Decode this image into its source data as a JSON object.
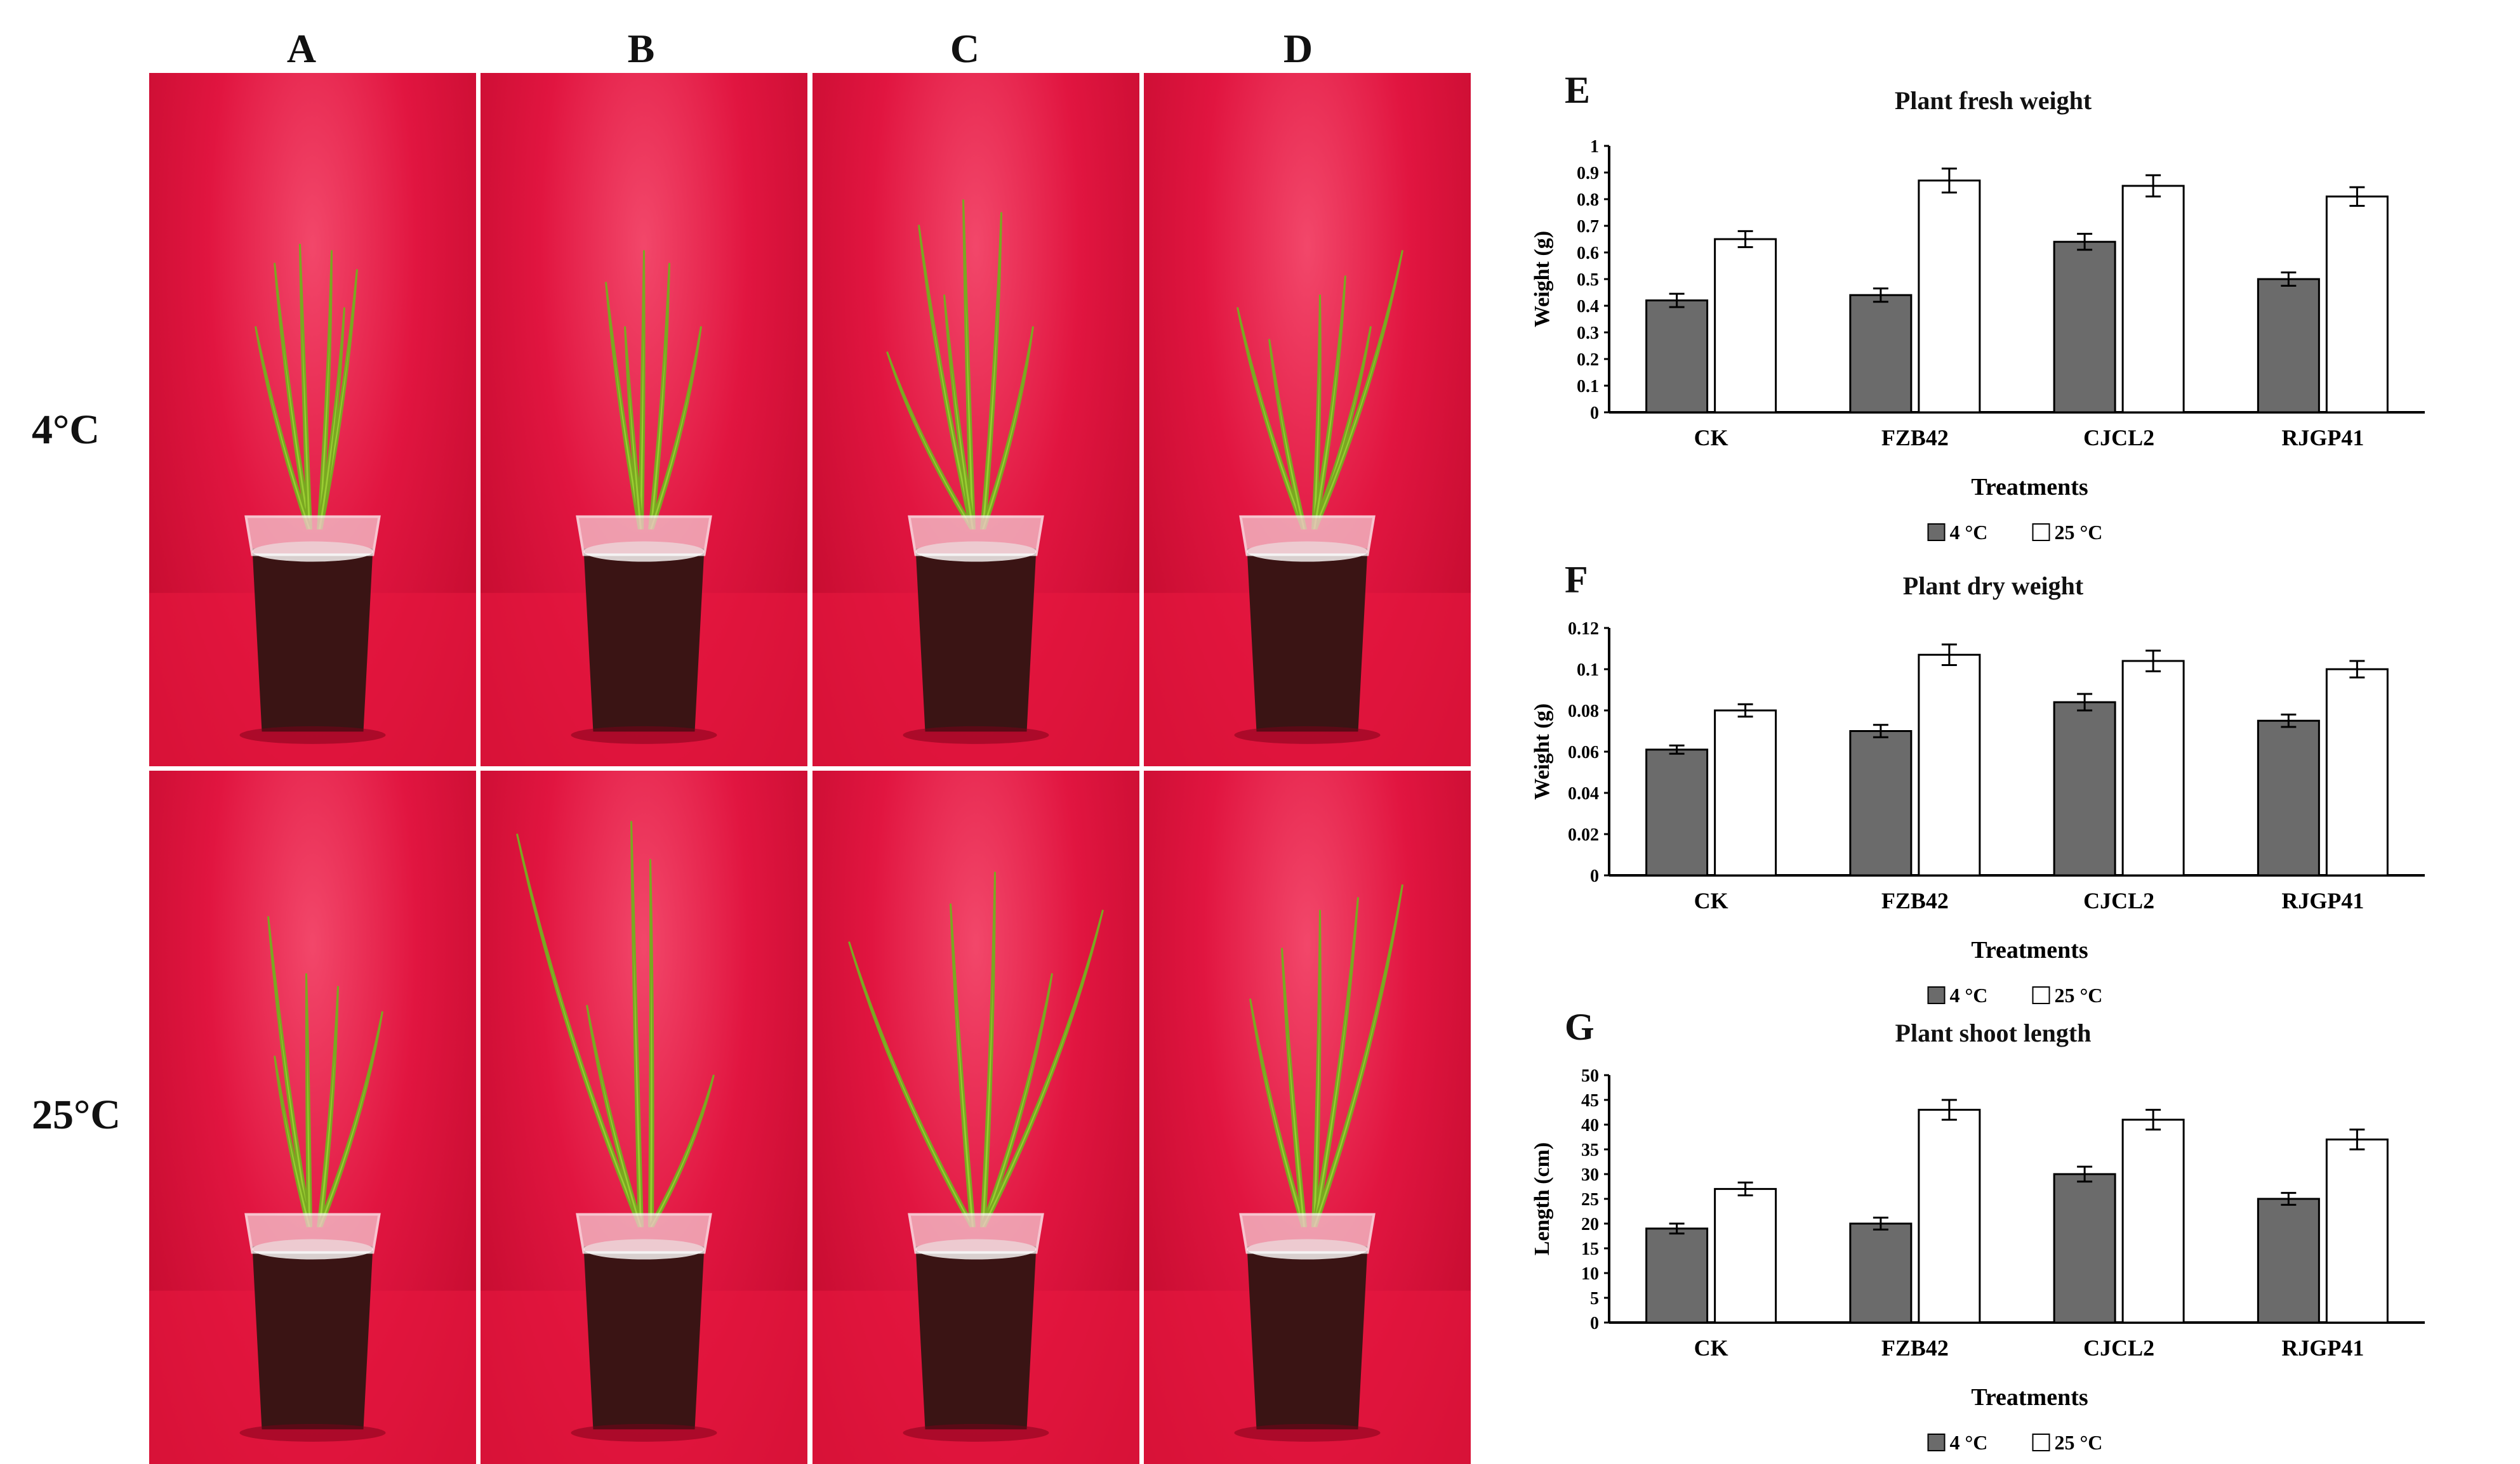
{
  "photo_panel": {
    "columns": [
      "A",
      "B",
      "C",
      "D"
    ],
    "rows": [
      "4°C",
      "25°C"
    ]
  },
  "colors": {
    "bar_4c": "#6b6b6b",
    "bar_25c": "#ffffff",
    "backdrop": "#e11540",
    "leaf": "#9acd32"
  },
  "chart_data": [
    {
      "panel": "E",
      "type": "bar",
      "title": "Plant fresh weight",
      "categories": [
        "CK",
        "FZB42",
        "CJCL2",
        "RJGP41"
      ],
      "series": [
        {
          "name": "4 °C",
          "values": [
            0.42,
            0.44,
            0.64,
            0.5
          ],
          "errors": [
            0.025,
            0.025,
            0.03,
            0.025
          ]
        },
        {
          "name": "25 °C",
          "values": [
            0.65,
            0.87,
            0.85,
            0.81
          ],
          "errors": [
            0.03,
            0.045,
            0.04,
            0.035
          ]
        }
      ],
      "xlabel": "Treatments",
      "ylabel": "Weight (g)",
      "ylim": [
        0,
        1
      ],
      "yticks": [
        "0",
        "0.1",
        "0.2",
        "0.3",
        "0.4",
        "0.5",
        "0.6",
        "0.7",
        "0.8",
        "0.9",
        "1"
      ],
      "legend": [
        "4 °C",
        "25 °C"
      ]
    },
    {
      "panel": "F",
      "type": "bar",
      "title": "Plant dry weight",
      "categories": [
        "CK",
        "FZB42",
        "CJCL2",
        "RJGP41"
      ],
      "series": [
        {
          "name": "4 °C",
          "values": [
            0.061,
            0.07,
            0.084,
            0.075
          ],
          "errors": [
            0.002,
            0.003,
            0.004,
            0.003
          ]
        },
        {
          "name": "25 °C",
          "values": [
            0.08,
            0.107,
            0.104,
            0.1
          ],
          "errors": [
            0.003,
            0.005,
            0.005,
            0.004
          ]
        }
      ],
      "xlabel": "Treatments",
      "ylabel": "Weight (g)",
      "ylim": [
        0,
        0.12
      ],
      "yticks": [
        "0",
        "0.02",
        "0.04",
        "0.06",
        "0.08",
        "0.1",
        "0.12"
      ],
      "legend": [
        "4 °C",
        "25 °C"
      ]
    },
    {
      "panel": "G",
      "type": "bar",
      "title": "Plant shoot length",
      "categories": [
        "CK",
        "FZB42",
        "CJCL2",
        "RJGP41"
      ],
      "series": [
        {
          "name": "4 °C",
          "values": [
            19,
            20,
            30,
            25
          ],
          "errors": [
            1,
            1.2,
            1.5,
            1.2
          ]
        },
        {
          "name": "25 °C",
          "values": [
            27,
            43,
            41,
            37
          ],
          "errors": [
            1.3,
            2,
            2,
            2
          ]
        }
      ],
      "xlabel": "Treatments",
      "ylabel": "Length (cm)",
      "ylim": [
        0,
        50
      ],
      "yticks": [
        "0",
        "5",
        "10",
        "15",
        "20",
        "25",
        "30",
        "35",
        "40",
        "45",
        "50"
      ],
      "legend": [
        "4 °C",
        "25 °C"
      ]
    }
  ]
}
